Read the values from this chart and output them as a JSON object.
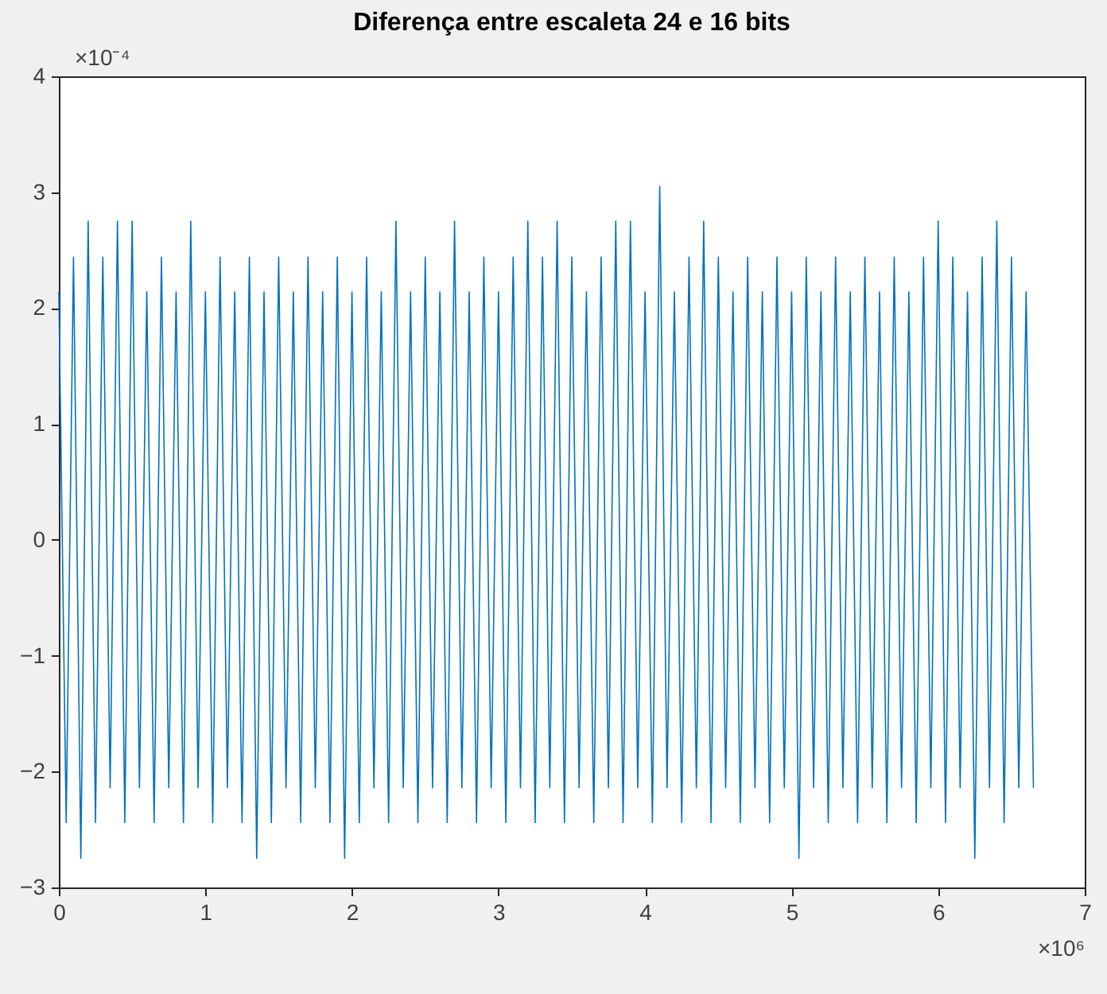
{
  "chart_data": {
    "type": "line",
    "title": "Diferença entre escaleta 24 e 16 bits",
    "x": [
      0,
      0.05,
      0.1,
      0.15,
      0.2,
      0.25,
      0.3,
      0.35,
      0.4,
      0.45,
      0.5,
      0.55,
      0.6,
      0.65,
      0.7,
      0.75,
      0.8,
      0.85,
      0.9,
      0.95,
      1.0,
      1.05,
      1.1,
      1.15,
      1.2,
      1.25,
      1.3,
      1.35,
      1.4,
      1.45,
      1.5,
      1.55,
      1.6,
      1.65,
      1.7,
      1.75,
      1.8,
      1.85,
      1.9,
      1.95,
      2.0,
      2.05,
      2.1,
      2.15,
      2.2,
      2.25,
      2.3,
      2.35,
      2.4,
      2.45,
      2.5,
      2.55,
      2.6,
      2.65,
      2.7,
      2.75,
      2.8,
      2.85,
      2.9,
      2.95,
      3.0,
      3.05,
      3.1,
      3.15,
      3.2,
      3.25,
      3.3,
      3.35,
      3.4,
      3.45,
      3.5,
      3.55,
      3.6,
      3.65,
      3.7,
      3.75,
      3.8,
      3.85,
      3.9,
      3.95,
      4.0,
      4.05,
      4.1,
      4.15,
      4.2,
      4.25,
      4.3,
      4.35,
      4.4,
      4.45,
      4.5,
      4.55,
      4.6,
      4.65,
      4.7,
      4.75,
      4.8,
      4.85,
      4.9,
      4.95,
      5.0,
      5.05,
      5.1,
      5.15,
      5.2,
      5.25,
      5.3,
      5.35,
      5.4,
      5.45,
      5.5,
      5.55,
      5.6,
      5.65,
      5.7,
      5.75,
      5.8,
      5.85,
      5.9,
      5.95,
      6.0,
      6.05,
      6.1,
      6.15,
      6.2,
      6.25,
      6.3,
      6.35,
      6.4,
      6.45,
      6.5,
      6.55,
      6.6,
      6.65
    ],
    "series": [
      {
        "color": "#0072bd",
        "values": [
          2.14,
          -2.44,
          2.44,
          -2.75,
          2.75,
          -2.44,
          2.44,
          -2.14,
          2.75,
          -2.44,
          2.75,
          -2.14,
          2.14,
          -2.44,
          2.44,
          -2.14,
          2.14,
          -2.44,
          2.75,
          -2.14,
          2.14,
          -2.44,
          2.44,
          -2.14,
          2.14,
          -2.44,
          2.44,
          -2.75,
          2.14,
          -2.44,
          2.44,
          -2.14,
          2.14,
          -2.44,
          2.44,
          -2.14,
          2.14,
          -2.44,
          2.44,
          -2.75,
          2.14,
          -2.44,
          2.44,
          -2.14,
          2.14,
          -2.44,
          2.75,
          -2.14,
          2.14,
          -2.44,
          2.44,
          -2.14,
          2.14,
          -2.44,
          2.75,
          -2.14,
          2.14,
          -2.44,
          2.44,
          -2.14,
          2.14,
          -2.44,
          2.44,
          -2.14,
          2.75,
          -2.44,
          2.44,
          -2.14,
          2.75,
          -2.44,
          2.44,
          -2.14,
          2.14,
          -2.44,
          2.44,
          -2.14,
          2.75,
          -2.44,
          2.75,
          -2.14,
          2.14,
          -2.44,
          3.05,
          -2.14,
          2.14,
          -2.44,
          2.44,
          -2.14,
          2.75,
          -2.44,
          2.44,
          -2.14,
          2.14,
          -2.44,
          2.44,
          -2.14,
          2.14,
          -2.44,
          2.44,
          -2.14,
          2.14,
          -2.75,
          2.44,
          -2.14,
          2.14,
          -2.44,
          2.44,
          -2.14,
          2.14,
          -2.44,
          2.44,
          -2.14,
          2.14,
          -2.44,
          2.44,
          -2.14,
          2.14,
          -2.44,
          2.44,
          -2.14,
          2.75,
          -2.44,
          2.44,
          -2.14,
          2.14,
          -2.75,
          2.44,
          -2.14,
          2.75,
          -2.44,
          2.44,
          -2.14,
          2.14,
          -2.14
        ]
      }
    ],
    "xlim": [
      0,
      7
    ],
    "xticks": [
      0,
      1,
      2,
      3,
      4,
      5,
      6,
      7
    ],
    "ylim": [
      -3,
      4
    ],
    "yticks": [
      -3,
      -2,
      -1,
      0,
      1,
      2,
      3,
      4
    ],
    "grid": false,
    "legend": false,
    "marker": "none",
    "line_style": "solid",
    "annotations": [
      "×10⁻⁴",
      "×10⁶"
    ]
  }
}
